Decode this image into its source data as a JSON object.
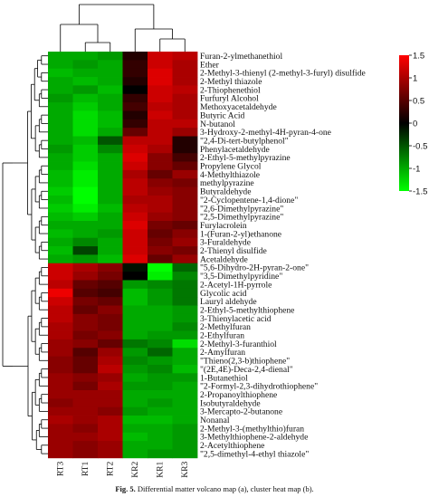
{
  "chart_data": {
    "type": "heatmap",
    "columns": [
      "RT3",
      "RT1",
      "RT2",
      "KR2",
      "KR1",
      "KR3"
    ],
    "rows": [
      "Furan-2-ylmethanethiol",
      "Ether",
      "2-Methyl-3-thienyl (2-methyl-3-furyl) disulfide",
      "2-Methyl thiazole",
      "2-Thiophenethiol",
      "Furfuryl Alcohol",
      "Methoxyacetaldehyde",
      "Butyric Acid",
      "N-butanol",
      "3-Hydroxy-2-methyl-4H-pyran-4-one",
      "\"2,4-Di-tert-butylphenol\"",
      "Phenylacetaldehyde",
      "2-Ethyl-5-methylpyrazine",
      "Propylene Glycol",
      "4-Methylthiazole",
      "methylpyrazine",
      "Butyraldehyde",
      "\"2-Cyclopentene-1,4-dione\"",
      "\"2,6-Dimethylpyrazine\"",
      "\"2,5-Dimethylpyrazine\"",
      "Furylacrolein",
      "1-(Furan-2-yl)ethanone",
      "3-Furaldehyde",
      "2-Thienyl disulfide",
      "Acetaldehyde",
      "\"5,6-Dihydro-2H-pyran-2-one\"",
      "\"3,5-Dimethylpyridine\"",
      "2-Acetyl-1H-pyrrole",
      "Glycolic acid",
      "Lauryl aldehyde",
      "2-Ethyl-5-methylthiophene",
      "3-Thienylacetic acid",
      "2-Methylfuran",
      "2-Ethylfuran",
      "2-Methyl-3-furanthiol",
      "2-Amylfuran",
      "\"Thieno(2,3-b)thiophene\"",
      "\"(2E,4E)-Deca-2,4-dienal\"",
      "1-Butanethiol",
      "\"2-Formyl-2,3-dihydrothiophene\"",
      "2-Propanoylthiophene",
      "Isobutyraldehyde",
      "3-Mercapto-2-butanone",
      "Nonanal",
      "2-Methyl-3-(methylthio)furan",
      "3-Methylthiophene-2-aldehyde",
      "2-Acetylthiophene",
      "\"2,5-dimethyl-4-ethyl thiazole\""
    ],
    "values": [
      [
        -1.0,
        -1.0,
        -0.9,
        0.2,
        1.2,
        1.1
      ],
      [
        -1.0,
        -0.9,
        -1.0,
        0.3,
        1.2,
        1.0
      ],
      [
        -1.1,
        -1.0,
        -1.0,
        0.3,
        1.3,
        1.0
      ],
      [
        -1.0,
        -1.1,
        -1.0,
        0.2,
        1.3,
        1.0
      ],
      [
        -1.0,
        -0.9,
        -1.1,
        0.0,
        1.2,
        1.1
      ],
      [
        -0.9,
        -1.1,
        -1.0,
        0.3,
        1.2,
        1.0
      ],
      [
        -1.0,
        -1.2,
        -1.0,
        0.4,
        1.1,
        1.0
      ],
      [
        -1.0,
        -1.3,
        -1.1,
        0.2,
        1.2,
        1.0
      ],
      [
        -1.0,
        -1.3,
        -1.1,
        0.3,
        1.1,
        1.1
      ],
      [
        -1.0,
        -1.3,
        -1.0,
        0.6,
        1.1,
        0.9
      ],
      [
        -1.0,
        -1.1,
        -0.5,
        1.1,
        1.1,
        0.2
      ],
      [
        -0.9,
        -1.2,
        -0.8,
        1.2,
        1.0,
        0.2
      ],
      [
        -1.0,
        -1.2,
        -1.0,
        1.3,
        0.8,
        0.4
      ],
      [
        -1.0,
        -1.3,
        -1.0,
        1.2,
        0.8,
        0.6
      ],
      [
        -1.1,
        -1.4,
        -1.0,
        1.0,
        0.6,
        0.9
      ],
      [
        -1.1,
        -1.4,
        -1.0,
        1.1,
        0.8,
        0.7
      ],
      [
        -1.2,
        -1.5,
        -1.0,
        1.1,
        0.9,
        0.8
      ],
      [
        -1.1,
        -1.5,
        -1.0,
        1.0,
        1.0,
        0.8
      ],
      [
        -1.2,
        -1.4,
        -1.1,
        1.1,
        1.0,
        0.8
      ],
      [
        -1.1,
        -1.2,
        -1.0,
        1.2,
        0.9,
        0.8
      ],
      [
        -1.0,
        -1.0,
        -1.0,
        1.3,
        0.7,
        0.6
      ],
      [
        -1.1,
        -1.0,
        -0.9,
        1.2,
        0.6,
        0.8
      ],
      [
        -1.0,
        -0.8,
        -1.0,
        1.2,
        0.7,
        0.9
      ],
      [
        -1.1,
        -0.4,
        -1.0,
        1.2,
        0.8,
        0.7
      ],
      [
        -1.0,
        -0.9,
        -1.1,
        1.3,
        0.6,
        0.9
      ],
      [
        1.2,
        1.0,
        0.8,
        -0.1,
        -1.6,
        -0.6
      ],
      [
        1.2,
        0.9,
        0.7,
        0.0,
        -1.4,
        -0.8
      ],
      [
        1.1,
        0.6,
        0.5,
        -0.9,
        -0.8,
        -0.7
      ],
      [
        1.4,
        0.5,
        0.4,
        -1.1,
        -0.9,
        -0.7
      ],
      [
        1.2,
        0.7,
        0.6,
        -1.1,
        -0.9,
        -0.7
      ],
      [
        1.1,
        0.6,
        0.8,
        -1.0,
        -1.0,
        -0.9
      ],
      [
        1.1,
        0.8,
        0.7,
        -1.0,
        -1.0,
        -0.9
      ],
      [
        1.0,
        0.8,
        0.7,
        -1.0,
        -1.0,
        -0.8
      ],
      [
        1.0,
        0.7,
        0.8,
        -1.0,
        -0.9,
        -0.9
      ],
      [
        0.9,
        0.8,
        0.6,
        -0.7,
        -0.8,
        -1.3
      ],
      [
        0.9,
        0.5,
        0.9,
        -0.9,
        -0.6,
        -1.0
      ],
      [
        0.8,
        0.6,
        1.0,
        -0.8,
        -0.9,
        -1.0
      ],
      [
        0.8,
        0.6,
        1.1,
        -0.9,
        -0.8,
        -1.1
      ],
      [
        0.9,
        0.8,
        0.9,
        -1.0,
        -0.9,
        -0.9
      ],
      [
        0.9,
        0.7,
        1.0,
        -0.9,
        -0.9,
        -1.0
      ],
      [
        0.9,
        0.9,
        0.9,
        -1.0,
        -1.0,
        -1.0
      ],
      [
        0.8,
        0.9,
        0.9,
        -1.0,
        -0.9,
        -1.0
      ],
      [
        0.9,
        0.9,
        0.8,
        -0.9,
        -1.0,
        -1.0
      ],
      [
        1.0,
        0.9,
        1.0,
        -1.1,
        -1.1,
        -1.0
      ],
      [
        0.9,
        0.8,
        1.0,
        -1.0,
        -1.0,
        -0.9
      ],
      [
        0.9,
        0.9,
        1.0,
        -1.1,
        -1.0,
        -0.9
      ],
      [
        0.9,
        0.8,
        0.9,
        -1.0,
        -1.0,
        -0.9
      ],
      [
        0.9,
        0.8,
        0.9,
        -1.0,
        -0.9,
        -0.9
      ]
    ],
    "colorbar": {
      "ticks": [
        1.5,
        1,
        0.5,
        0,
        -0.5,
        -1,
        -1.5
      ],
      "tick_labels": [
        "1.5",
        "1",
        "0.5",
        "0",
        "-0.5",
        "-1",
        "-1.5"
      ],
      "range": [
        -1.5,
        1.5
      ],
      "colors": {
        "high": "#ff0000",
        "mid": "#000000",
        "low": "#00ff00"
      }
    },
    "dendrogram": {
      "row_clusters": 2,
      "col_clusters": 2,
      "line_color": "#000000"
    }
  },
  "caption": {
    "label": "Fig. 5.",
    "text": "Differential matter volcano map (a), cluster heat map (b)."
  }
}
